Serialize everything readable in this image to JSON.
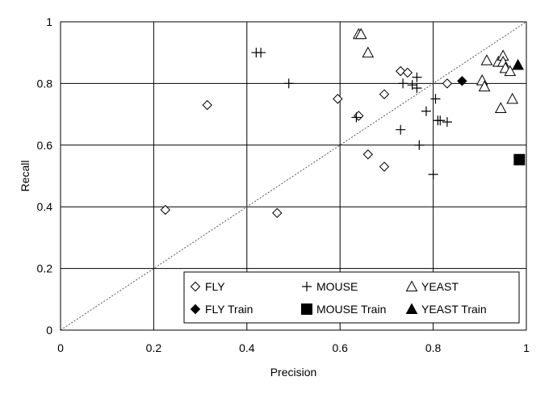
{
  "chart_data": {
    "type": "scatter",
    "title": "",
    "xlabel": "Precision",
    "ylabel": "Recall",
    "xlim": [
      0,
      1
    ],
    "ylim": [
      0,
      1
    ],
    "xticks": [
      "0",
      "0.2",
      "0.4",
      "0.6",
      "0.8",
      "1"
    ],
    "yticks": [
      "0",
      "0.2",
      "0.4",
      "0.6",
      "0.8",
      "1"
    ],
    "grid": true,
    "diagonal_reference_line": true,
    "legend_position": "bottom-right",
    "series": [
      {
        "name": "FLY",
        "marker": "diamond-open",
        "points": [
          [
            0.225,
            0.39
          ],
          [
            0.315,
            0.73
          ],
          [
            0.465,
            0.38
          ],
          [
            0.595,
            0.75
          ],
          [
            0.64,
            0.695
          ],
          [
            0.66,
            0.57
          ],
          [
            0.695,
            0.53
          ],
          [
            0.695,
            0.765
          ],
          [
            0.73,
            0.84
          ],
          [
            0.745,
            0.835
          ],
          [
            0.83,
            0.8
          ]
        ]
      },
      {
        "name": "MOUSE",
        "marker": "plus",
        "points": [
          [
            0.42,
            0.9
          ],
          [
            0.43,
            0.9
          ],
          [
            0.49,
            0.8
          ],
          [
            0.635,
            0.69
          ],
          [
            0.73,
            0.65
          ],
          [
            0.735,
            0.8
          ],
          [
            0.755,
            0.795
          ],
          [
            0.765,
            0.785
          ],
          [
            0.765,
            0.82
          ],
          [
            0.77,
            0.6
          ],
          [
            0.785,
            0.71
          ],
          [
            0.8,
            0.505
          ],
          [
            0.805,
            0.75
          ],
          [
            0.81,
            0.68
          ],
          [
            0.815,
            0.68
          ],
          [
            0.83,
            0.675
          ]
        ]
      },
      {
        "name": "YEAST",
        "marker": "triangle-open",
        "points": [
          [
            0.64,
            0.96
          ],
          [
            0.645,
            0.96
          ],
          [
            0.66,
            0.9
          ],
          [
            0.905,
            0.81
          ],
          [
            0.91,
            0.79
          ],
          [
            0.915,
            0.875
          ],
          [
            0.94,
            0.87
          ],
          [
            0.945,
            0.72
          ],
          [
            0.95,
            0.89
          ],
          [
            0.95,
            0.87
          ],
          [
            0.955,
            0.85
          ],
          [
            0.965,
            0.84
          ],
          [
            0.97,
            0.75
          ]
        ]
      },
      {
        "name": "FLY Train",
        "marker": "diamond-filled",
        "points": [
          [
            0.862,
            0.808
          ]
        ]
      },
      {
        "name": "MOUSE Train",
        "marker": "square-filled",
        "points": [
          [
            0.985,
            0.553
          ]
        ]
      },
      {
        "name": "YEAST Train",
        "marker": "triangle-filled",
        "points": [
          [
            0.982,
            0.86
          ]
        ]
      }
    ]
  }
}
